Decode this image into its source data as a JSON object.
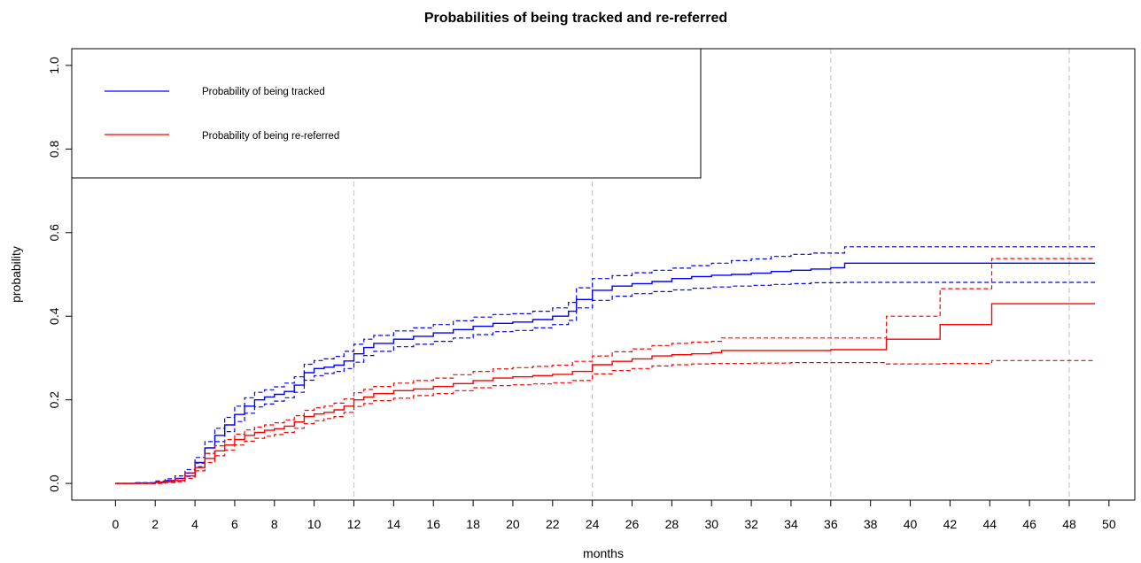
{
  "chart_data": {
    "type": "line",
    "title": "Probabilities of being tracked and re-referred",
    "xlabel": "months",
    "ylabel": "probability",
    "xlim": [
      -2.2,
      51.3
    ],
    "ylim": [
      -0.04,
      1.04
    ],
    "x_ticks": [
      0,
      2,
      4,
      6,
      8,
      10,
      12,
      14,
      16,
      18,
      20,
      22,
      24,
      26,
      28,
      30,
      32,
      34,
      36,
      38,
      40,
      42,
      44,
      46,
      48,
      50
    ],
    "y_ticks": [
      0.0,
      0.2,
      0.4,
      0.6,
      0.8,
      1.0
    ],
    "y_tick_labels": [
      "0.0",
      "0.2",
      "0.4",
      "0.6",
      "0.8",
      "1.0"
    ],
    "vertical_gridlines_at": [
      12,
      24,
      36,
      48
    ],
    "legend": {
      "placement": "top-left",
      "entries": [
        {
          "label": "Probability of being tracked",
          "color": "#0000FF"
        },
        {
          "label": "Probability of being re-referred",
          "color": "#FF0000"
        }
      ]
    },
    "series": [
      {
        "name": "Probability of being tracked",
        "color": "#0000FF",
        "style": "solid",
        "x": [
          0,
          1,
          2,
          2.5,
          3,
          3.5,
          4,
          4.5,
          5,
          5.5,
          6,
          6.5,
          7,
          7.5,
          8,
          8.5,
          9,
          9.5,
          10,
          10.5,
          11,
          11.5,
          12,
          12.5,
          13,
          14,
          15,
          16,
          17,
          18,
          19,
          20,
          21,
          22,
          22.8,
          23.2,
          24,
          25,
          26,
          27,
          28,
          29,
          30,
          31,
          32,
          33,
          34,
          35,
          36,
          36.7,
          40,
          44,
          48,
          49.3
        ],
        "y": [
          0.0,
          0.001,
          0.003,
          0.007,
          0.012,
          0.025,
          0.05,
          0.085,
          0.115,
          0.14,
          0.165,
          0.185,
          0.2,
          0.207,
          0.213,
          0.22,
          0.235,
          0.265,
          0.275,
          0.278,
          0.283,
          0.293,
          0.31,
          0.325,
          0.335,
          0.345,
          0.352,
          0.36,
          0.368,
          0.376,
          0.383,
          0.386,
          0.392,
          0.4,
          0.412,
          0.44,
          0.462,
          0.472,
          0.478,
          0.483,
          0.49,
          0.495,
          0.498,
          0.5,
          0.503,
          0.507,
          0.51,
          0.513,
          0.516,
          0.527,
          0.527,
          0.527,
          0.527,
          0.527
        ]
      },
      {
        "name": "Upper bound (tracked)",
        "color": "#0000FF",
        "style": "dashed",
        "x": [
          0,
          1,
          2,
          2.5,
          3,
          3.5,
          4,
          4.5,
          5,
          5.5,
          6,
          6.5,
          7,
          7.5,
          8,
          8.5,
          9,
          9.5,
          10,
          10.5,
          11,
          11.5,
          12,
          12.5,
          13,
          14,
          15,
          16,
          17,
          18,
          19,
          20,
          21,
          22,
          22.8,
          23.2,
          24,
          25,
          26,
          27,
          28,
          29,
          30,
          31,
          32,
          33,
          34,
          35,
          36,
          36.7,
          40,
          44,
          48,
          49.3
        ],
        "y": [
          0.0,
          0.002,
          0.006,
          0.011,
          0.018,
          0.033,
          0.062,
          0.1,
          0.132,
          0.158,
          0.185,
          0.205,
          0.218,
          0.224,
          0.231,
          0.24,
          0.255,
          0.285,
          0.294,
          0.298,
          0.304,
          0.316,
          0.333,
          0.345,
          0.354,
          0.365,
          0.372,
          0.38,
          0.389,
          0.398,
          0.404,
          0.406,
          0.412,
          0.42,
          0.433,
          0.468,
          0.49,
          0.497,
          0.504,
          0.51,
          0.515,
          0.521,
          0.527,
          0.533,
          0.537,
          0.543,
          0.548,
          0.551,
          0.551,
          0.566,
          0.566,
          0.566,
          0.566,
          0.566
        ]
      },
      {
        "name": "Lower bound (tracked)",
        "color": "#0000FF",
        "style": "dashed",
        "x": [
          0,
          1,
          2,
          2.5,
          3,
          3.5,
          4,
          4.5,
          5,
          5.5,
          6,
          6.5,
          7,
          7.5,
          8,
          8.5,
          9,
          9.5,
          10,
          10.5,
          11,
          11.5,
          12,
          12.5,
          13,
          14,
          15,
          16,
          17,
          18,
          19,
          20,
          21,
          22,
          22.8,
          23.2,
          24,
          25,
          26,
          27,
          28,
          29,
          30,
          31,
          32,
          33,
          34,
          35,
          36,
          36.7,
          40,
          44,
          48,
          49.3
        ],
        "y": [
          0.0,
          0.0,
          0.001,
          0.003,
          0.006,
          0.017,
          0.04,
          0.072,
          0.1,
          0.124,
          0.148,
          0.168,
          0.183,
          0.19,
          0.197,
          0.205,
          0.218,
          0.247,
          0.258,
          0.263,
          0.268,
          0.275,
          0.29,
          0.306,
          0.316,
          0.327,
          0.333,
          0.34,
          0.348,
          0.356,
          0.363,
          0.366,
          0.372,
          0.38,
          0.39,
          0.42,
          0.438,
          0.448,
          0.454,
          0.459,
          0.463,
          0.467,
          0.47,
          0.472,
          0.474,
          0.476,
          0.478,
          0.48,
          0.48,
          0.481,
          0.481,
          0.481,
          0.481,
          0.481
        ]
      },
      {
        "name": "Probability of being re-referred",
        "color": "#FF0000",
        "style": "solid",
        "x": [
          0,
          1,
          2,
          2.5,
          3,
          3.5,
          4,
          4.5,
          5,
          5.5,
          6,
          6.5,
          7,
          7.5,
          8,
          8.5,
          9,
          9.5,
          10,
          10.5,
          11,
          11.5,
          12,
          12.5,
          13,
          14,
          15,
          16,
          17,
          18,
          19,
          20,
          21,
          22,
          23,
          24,
          25,
          26,
          27,
          28,
          29,
          30,
          30.5,
          32,
          34,
          36,
          38.8,
          41.5,
          44.1,
          49.3
        ],
        "y": [
          0.0,
          0.0,
          0.002,
          0.004,
          0.007,
          0.018,
          0.038,
          0.06,
          0.078,
          0.092,
          0.105,
          0.115,
          0.122,
          0.127,
          0.131,
          0.137,
          0.147,
          0.16,
          0.166,
          0.17,
          0.176,
          0.185,
          0.2,
          0.207,
          0.215,
          0.222,
          0.226,
          0.232,
          0.239,
          0.246,
          0.252,
          0.255,
          0.258,
          0.261,
          0.268,
          0.284,
          0.292,
          0.298,
          0.305,
          0.308,
          0.31,
          0.313,
          0.318,
          0.318,
          0.318,
          0.32,
          0.345,
          0.38,
          0.43,
          0.43
        ]
      },
      {
        "name": "Upper bound (re-referred)",
        "color": "#FF0000",
        "style": "dashed",
        "x": [
          0,
          1,
          2,
          2.5,
          3,
          3.5,
          4,
          4.5,
          5,
          5.5,
          6,
          6.5,
          7,
          7.5,
          8,
          8.5,
          9,
          9.5,
          10,
          10.5,
          11,
          11.5,
          12,
          12.5,
          13,
          14,
          15,
          16,
          17,
          18,
          19,
          20,
          21,
          22,
          23,
          24,
          25,
          26,
          27,
          28,
          29,
          30,
          30.5,
          32,
          34,
          36,
          38.8,
          40.5,
          41.5,
          44.1,
          49.3
        ],
        "y": [
          0.0,
          0.001,
          0.004,
          0.007,
          0.011,
          0.025,
          0.048,
          0.072,
          0.09,
          0.105,
          0.118,
          0.128,
          0.135,
          0.14,
          0.145,
          0.152,
          0.162,
          0.175,
          0.181,
          0.185,
          0.192,
          0.202,
          0.217,
          0.225,
          0.232,
          0.24,
          0.246,
          0.252,
          0.26,
          0.268,
          0.274,
          0.277,
          0.28,
          0.283,
          0.292,
          0.305,
          0.315,
          0.322,
          0.33,
          0.335,
          0.338,
          0.34,
          0.348,
          0.348,
          0.348,
          0.348,
          0.4,
          0.4,
          0.466,
          0.538,
          0.538
        ]
      },
      {
        "name": "Lower bound (re-referred)",
        "color": "#FF0000",
        "style": "dashed",
        "x": [
          0,
          1,
          2,
          2.5,
          3,
          3.5,
          4,
          4.5,
          5,
          5.5,
          6,
          6.5,
          7,
          7.5,
          8,
          8.5,
          9,
          9.5,
          10,
          10.5,
          11,
          11.5,
          12,
          12.5,
          13,
          14,
          15,
          16,
          17,
          18,
          19,
          20,
          21,
          22,
          23,
          24,
          25,
          26,
          27,
          28,
          29,
          30,
          32,
          34,
          36,
          38.8,
          41.5,
          44.1,
          49.3
        ],
        "y": [
          0.0,
          0.0,
          0.0,
          0.002,
          0.004,
          0.012,
          0.03,
          0.05,
          0.066,
          0.08,
          0.092,
          0.101,
          0.108,
          0.113,
          0.117,
          0.122,
          0.132,
          0.143,
          0.15,
          0.155,
          0.16,
          0.17,
          0.184,
          0.191,
          0.198,
          0.204,
          0.21,
          0.215,
          0.222,
          0.229,
          0.234,
          0.236,
          0.238,
          0.241,
          0.246,
          0.262,
          0.27,
          0.275,
          0.281,
          0.284,
          0.286,
          0.287,
          0.288,
          0.289,
          0.289,
          0.286,
          0.287,
          0.294,
          0.294
        ]
      }
    ]
  }
}
